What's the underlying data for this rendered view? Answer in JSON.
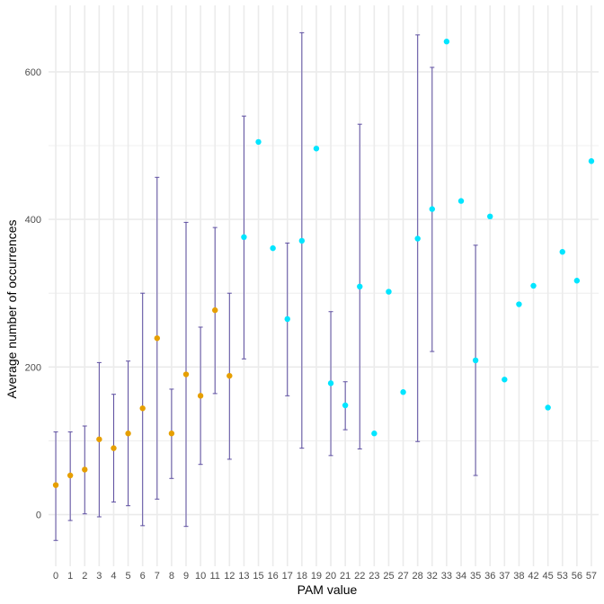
{
  "chart_data": {
    "type": "scatter",
    "title": "",
    "xlabel": "PAM value",
    "ylabel": "Average number of occurrences",
    "ylim": [
      -70,
      690
    ],
    "yticks": [
      0,
      200,
      400,
      600
    ],
    "categories": [
      "0",
      "1",
      "2",
      "3",
      "4",
      "5",
      "6",
      "7",
      "8",
      "9",
      "10",
      "11",
      "12",
      "13",
      "15",
      "16",
      "17",
      "18",
      "19",
      "20",
      "21",
      "22",
      "23",
      "25",
      "27",
      "28",
      "32",
      "33",
      "34",
      "35",
      "36",
      "37",
      "38",
      "42",
      "45",
      "53",
      "56",
      "57"
    ],
    "colors": {
      "group_low": "#e69f00",
      "group_high": "#00e5ff",
      "errorbar": "#5e4fa2",
      "grid": "#ebebeb"
    },
    "points": [
      {
        "x": "0",
        "y": 40,
        "lo": -35,
        "hi": 112,
        "group": "low"
      },
      {
        "x": "1",
        "y": 53,
        "lo": -8,
        "hi": 112,
        "group": "low"
      },
      {
        "x": "2",
        "y": 61,
        "lo": 1,
        "hi": 120,
        "group": "low"
      },
      {
        "x": "3",
        "y": 102,
        "lo": -3,
        "hi": 206,
        "group": "low"
      },
      {
        "x": "4",
        "y": 90,
        "lo": 17,
        "hi": 163,
        "group": "low"
      },
      {
        "x": "5",
        "y": 110,
        "lo": 12,
        "hi": 208,
        "group": "low"
      },
      {
        "x": "6",
        "y": 144,
        "lo": -15,
        "hi": 300,
        "group": "low"
      },
      {
        "x": "7",
        "y": 239,
        "lo": 21,
        "hi": 457,
        "group": "low"
      },
      {
        "x": "8",
        "y": 110,
        "lo": 49,
        "hi": 170,
        "group": "low"
      },
      {
        "x": "9",
        "y": 190,
        "lo": -16,
        "hi": 396,
        "group": "low"
      },
      {
        "x": "10",
        "y": 161,
        "lo": 68,
        "hi": 254,
        "group": "low"
      },
      {
        "x": "11",
        "y": 277,
        "lo": 164,
        "hi": 389,
        "group": "low"
      },
      {
        "x": "12",
        "y": 188,
        "lo": 75,
        "hi": 300,
        "group": "low"
      },
      {
        "x": "13",
        "y": 376,
        "lo": 211,
        "hi": 540,
        "group": "high"
      },
      {
        "x": "15",
        "y": 505,
        "lo": null,
        "hi": null,
        "group": "high"
      },
      {
        "x": "16",
        "y": 361,
        "lo": null,
        "hi": null,
        "group": "high"
      },
      {
        "x": "17",
        "y": 265,
        "lo": 161,
        "hi": 368,
        "group": "high"
      },
      {
        "x": "18",
        "y": 371,
        "lo": 90,
        "hi": 653,
        "group": "high"
      },
      {
        "x": "19",
        "y": 496,
        "lo": null,
        "hi": null,
        "group": "high"
      },
      {
        "x": "20",
        "y": 178,
        "lo": 80,
        "hi": 275,
        "group": "high"
      },
      {
        "x": "21",
        "y": 148,
        "lo": 115,
        "hi": 180,
        "group": "high"
      },
      {
        "x": "22",
        "y": 309,
        "lo": 89,
        "hi": 529,
        "group": "high"
      },
      {
        "x": "23",
        "y": 110,
        "lo": null,
        "hi": null,
        "group": "high"
      },
      {
        "x": "25",
        "y": 302,
        "lo": null,
        "hi": null,
        "group": "high"
      },
      {
        "x": "27",
        "y": 166,
        "lo": null,
        "hi": null,
        "group": "high"
      },
      {
        "x": "28",
        "y": 374,
        "lo": 99,
        "hi": 650,
        "group": "high"
      },
      {
        "x": "32",
        "y": 414,
        "lo": 221,
        "hi": 606,
        "group": "high"
      },
      {
        "x": "33",
        "y": 641,
        "lo": null,
        "hi": null,
        "group": "high"
      },
      {
        "x": "34",
        "y": 425,
        "lo": null,
        "hi": null,
        "group": "high"
      },
      {
        "x": "35",
        "y": 209,
        "lo": 53,
        "hi": 365,
        "group": "high"
      },
      {
        "x": "36",
        "y": 404,
        "lo": null,
        "hi": null,
        "group": "high"
      },
      {
        "x": "37",
        "y": 183,
        "lo": null,
        "hi": null,
        "group": "high"
      },
      {
        "x": "38",
        "y": 285,
        "lo": null,
        "hi": null,
        "group": "high"
      },
      {
        "x": "42",
        "y": 310,
        "lo": null,
        "hi": null,
        "group": "high"
      },
      {
        "x": "45",
        "y": 145,
        "lo": null,
        "hi": null,
        "group": "high"
      },
      {
        "x": "53",
        "y": 356,
        "lo": null,
        "hi": null,
        "group": "high"
      },
      {
        "x": "56",
        "y": 317,
        "lo": null,
        "hi": null,
        "group": "high"
      },
      {
        "x": "57",
        "y": 479,
        "lo": null,
        "hi": null,
        "group": "high"
      }
    ],
    "grid": true,
    "legend": "none"
  }
}
